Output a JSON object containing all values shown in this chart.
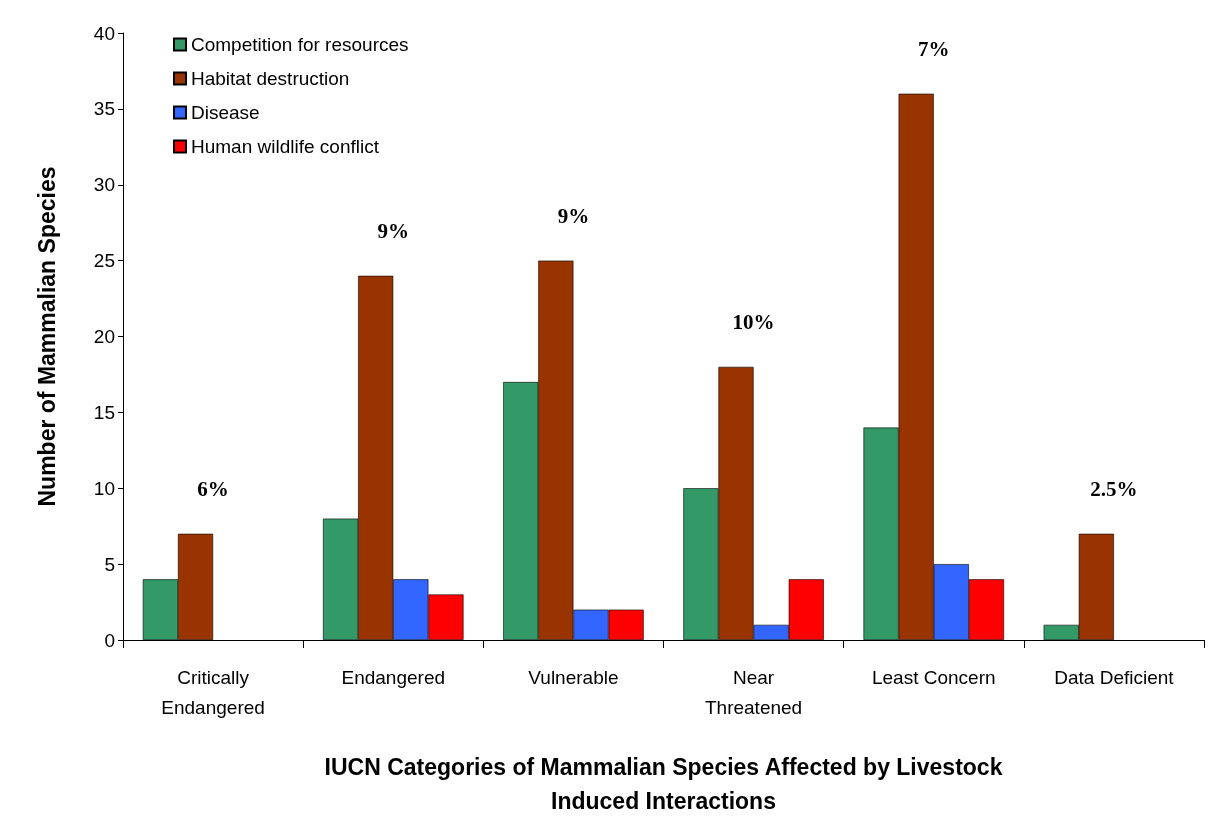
{
  "chart_data": {
    "type": "bar",
    "categories": [
      "Critically\nEndangered",
      "Endangered",
      "Vulnerable",
      "Near\nThreatened",
      "Least Concern",
      "Data Deficient"
    ],
    "series": [
      {
        "name": "Competition for resources",
        "color": "#339966",
        "values": [
          4,
          8,
          17,
          10,
          14,
          1
        ]
      },
      {
        "name": "Habitat destruction",
        "color": "#993300",
        "values": [
          7,
          24,
          25,
          18,
          36,
          7
        ]
      },
      {
        "name": "Disease",
        "color": "#3366ff",
        "values": [
          null,
          4,
          2,
          1,
          5,
          null
        ]
      },
      {
        "name": "Human wildlife conflict",
        "color": "#ff0000",
        "values": [
          null,
          3,
          2,
          4,
          4,
          null
        ]
      }
    ],
    "ylim": [
      0,
      40
    ],
    "yticks": [
      0,
      5,
      10,
      15,
      20,
      25,
      30,
      35,
      40
    ],
    "ylabel": "Number of Mammalian Species",
    "xlabel": "IUCN Categories of Mammalian Species Affected by Livestock\nInduced Interactions",
    "annotations": [
      "6%",
      "9%",
      "9%",
      "10%",
      "7%",
      "2.5%"
    ],
    "grid": false,
    "legend": "top left"
  }
}
